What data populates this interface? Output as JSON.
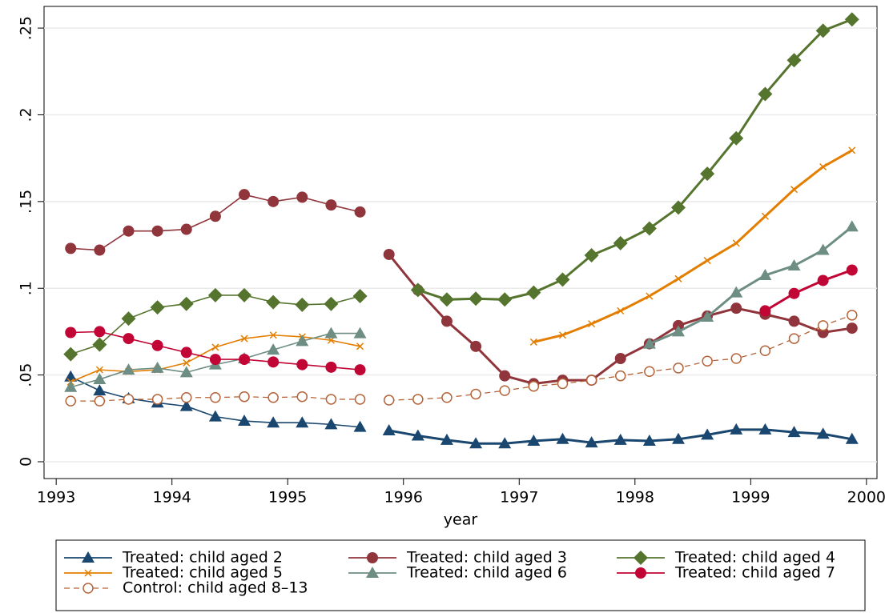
{
  "chart_data": {
    "type": "line",
    "x_label": "year",
    "x": [
      1993.125,
      1993.375,
      1993.625,
      1993.875,
      1994.125,
      1994.375,
      1994.625,
      1994.875,
      1995.125,
      1995.375,
      1995.625,
      null,
      1995.875,
      1996.125,
      1996.375,
      1996.625,
      1996.875,
      1997.125,
      1997.375,
      1997.625,
      1997.875,
      1998.125,
      1998.375,
      1998.625,
      1998.875,
      1999.125,
      1999.375,
      1999.625,
      1999.875
    ],
    "xlim": [
      1992.895,
      2000.091
    ],
    "xticks": [
      1993,
      1994,
      1995,
      1996,
      1997,
      1998,
      1999,
      2000
    ],
    "ylim": [
      -0.0097,
      0.2625
    ],
    "yticks": [
      0,
      {
        "value": 0.05,
        "label": ".05"
      },
      {
        "value": 0.1,
        "label": ".1"
      },
      {
        "value": 0.15,
        "label": ".15"
      },
      {
        "value": 0.2,
        "label": ".2"
      },
      {
        "value": 0.25,
        "label": ".25"
      }
    ],
    "grid": true,
    "series": [
      {
        "name": "Treated: child aged 2",
        "color": "#1a476f",
        "marker": "triangle",
        "dashed": false,
        "values": [
          0.049,
          0.041,
          0.0365,
          0.034,
          0.032,
          0.026,
          0.0235,
          0.0225,
          0.0225,
          0.0215,
          0.02,
          null,
          0.018,
          0.015,
          0.0125,
          0.0105,
          0.0105,
          0.012,
          0.013,
          0.011,
          0.0125,
          0.012,
          0.013,
          0.0155,
          0.0185,
          0.0185,
          0.017,
          0.016,
          0.013
        ]
      },
      {
        "name": "Treated: child aged 3",
        "color": "#90353b",
        "marker": "circle",
        "dashed": false,
        "values": [
          0.123,
          0.122,
          0.133,
          0.133,
          0.134,
          0.1415,
          0.154,
          0.15,
          0.1525,
          0.148,
          0.144,
          null,
          0.1195,
          0.099,
          0.081,
          0.0665,
          0.0495,
          0.045,
          0.047,
          0.047,
          0.0595,
          0.068,
          0.0785,
          0.084,
          0.0885,
          0.085,
          0.081,
          0.0745,
          0.077
        ]
      },
      {
        "name": "Treated: child aged 4",
        "color": "#55752f",
        "marker": "diamond",
        "dashed": false,
        "values": [
          0.062,
          0.0675,
          0.0825,
          0.089,
          0.091,
          0.096,
          0.096,
          0.092,
          0.0905,
          0.091,
          0.0955,
          null,
          null,
          0.099,
          0.0935,
          0.094,
          0.0935,
          0.0975,
          0.105,
          0.119,
          0.126,
          0.1345,
          0.1465,
          0.166,
          0.1865,
          0.212,
          0.2315,
          0.2485,
          0.255
        ]
      },
      {
        "name": "Treated: child aged 5",
        "color": "#e37e00",
        "marker": "x",
        "dashed": false,
        "values": [
          0.046,
          0.053,
          0.052,
          0.053,
          0.057,
          0.066,
          0.071,
          0.073,
          0.072,
          0.07,
          0.0665,
          null,
          null,
          null,
          null,
          null,
          null,
          0.069,
          0.073,
          0.0795,
          0.087,
          0.0955,
          0.1055,
          0.116,
          0.126,
          0.1415,
          0.157,
          0.17,
          0.1795
        ]
      },
      {
        "name": "Treated: child aged 6",
        "color": "#6e8e84",
        "marker": "triangle",
        "dashed": false,
        "values": [
          0.043,
          0.0475,
          0.053,
          0.054,
          0.0515,
          0.056,
          0.0595,
          0.0645,
          0.0695,
          0.074,
          0.074,
          null,
          null,
          null,
          null,
          null,
          null,
          null,
          null,
          null,
          null,
          0.068,
          0.075,
          0.0835,
          0.0975,
          0.1075,
          0.113,
          0.122,
          0.1355
        ]
      },
      {
        "name": "Treated: child aged 7",
        "color": "#c10534",
        "marker": "circle",
        "dashed": false,
        "values": [
          0.0745,
          0.075,
          0.071,
          0.067,
          0.063,
          0.059,
          0.059,
          0.0575,
          0.056,
          0.0545,
          0.053,
          null,
          null,
          null,
          null,
          null,
          null,
          null,
          null,
          null,
          null,
          null,
          null,
          null,
          null,
          0.087,
          0.097,
          0.1045,
          0.1105
        ]
      },
      {
        "name": "Control: child aged 8–13",
        "color": "#b5643a",
        "marker": "hollow-circle",
        "dashed": true,
        "values": [
          0.035,
          0.035,
          0.036,
          0.036,
          0.037,
          0.037,
          0.0375,
          0.037,
          0.0375,
          0.036,
          0.036,
          null,
          0.0355,
          0.036,
          0.037,
          0.039,
          0.041,
          0.0435,
          0.045,
          0.047,
          0.0495,
          0.052,
          0.054,
          0.058,
          0.0595,
          0.064,
          0.071,
          0.0785,
          0.0845
        ]
      }
    ]
  }
}
